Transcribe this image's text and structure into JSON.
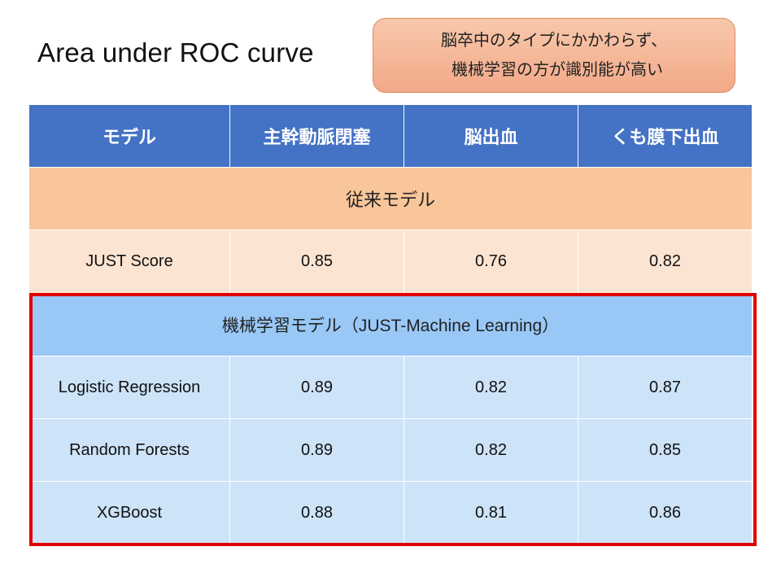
{
  "slide": {
    "title": "Area under ROC curve"
  },
  "callout": {
    "line1": "脳卒中のタイプにかかわらず、",
    "line2": "機械学習の方が識別能が高い",
    "fill_top": "#f7c8ac",
    "fill_bottom": "#f3a988"
  },
  "table": {
    "headers": [
      "モデル",
      "主幹動脈閉塞",
      "脳出血",
      "くも膜下出血"
    ],
    "sections": [
      {
        "label": "従来モデル",
        "rows": [
          {
            "model": "JUST Score",
            "values": [
              "0.85",
              "0.76",
              "0.82"
            ]
          }
        ]
      },
      {
        "label": "機械学習モデル（JUST-Machine Learning）",
        "rows": [
          {
            "model": "Logistic Regression",
            "values": [
              "0.89",
              "0.82",
              "0.87"
            ]
          },
          {
            "model": "Random Forests",
            "values": [
              "0.89",
              "0.82",
              "0.85"
            ]
          },
          {
            "model": "XGBoost",
            "values": [
              "0.88",
              "0.81",
              "0.86"
            ]
          }
        ]
      }
    ]
  },
  "colors": {
    "header": "#4472c4",
    "conventional_section": "#f8c69a",
    "conventional_row": "#fce4d2",
    "ml_section": "#99c8f7",
    "ml_row": "#cde3f8",
    "highlight_border": "#e00000"
  }
}
